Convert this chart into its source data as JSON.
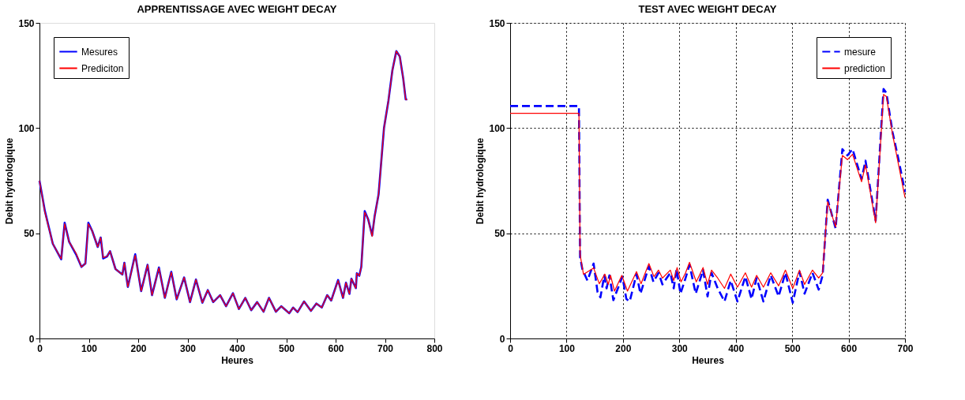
{
  "chart_data": [
    {
      "type": "line",
      "title": "APPRENTISSAGE AVEC WEIGHT DECAY",
      "xlabel": "Heures",
      "ylabel": "Debit hydrologique",
      "xlim": [
        0,
        800
      ],
      "xticks": [
        0,
        100,
        200,
        300,
        400,
        500,
        600,
        700,
        800
      ],
      "ylim": [
        0,
        150
      ],
      "yticks": [
        0,
        50,
        100,
        150
      ],
      "grid": false,
      "legend": "top left",
      "series": [
        {
          "name": "Mesures",
          "color": "#0000ff",
          "line_style": "solid",
          "x": [
            0,
            11,
            27,
            44,
            51,
            60,
            74,
            85,
            93,
            99,
            107,
            118,
            124,
            129,
            137,
            143,
            154,
            168,
            172,
            179,
            194,
            206,
            219,
            228,
            242,
            254,
            267,
            278,
            293,
            305,
            317,
            330,
            341,
            352,
            366,
            378,
            392,
            404,
            417,
            429,
            441,
            454,
            465,
            479,
            490,
            506,
            514,
            523,
            536,
            550,
            561,
            572,
            583,
            591,
            605,
            615,
            621,
            628,
            632,
            641,
            643,
            648,
            652,
            659,
            666,
            674,
            679,
            687,
            698,
            707,
            715,
            723,
            730,
            737,
            742,
            745
          ],
          "values": [
            75,
            60.5,
            45,
            37.6,
            55,
            46,
            40,
            34,
            35.6,
            55,
            51,
            43.5,
            48,
            38,
            39,
            41.5,
            33,
            30.4,
            36,
            24.5,
            40,
            22.5,
            35,
            20.6,
            33.7,
            19.3,
            31.7,
            18.6,
            29,
            17.3,
            28,
            17,
            23,
            17.3,
            20.6,
            15.3,
            21.5,
            14,
            19.3,
            13.4,
            17.3,
            12.7,
            19.3,
            12.7,
            15.3,
            12,
            14.7,
            12.5,
            17.6,
            13.1,
            16.6,
            14.7,
            20.6,
            18,
            27.8,
            19.3,
            26.5,
            21.2,
            28.4,
            23.9,
            31,
            29.8,
            34,
            60.5,
            56.6,
            49,
            58,
            68.4,
            100,
            113,
            127.4,
            136.6,
            134,
            123.5,
            113.6,
            113.6
          ]
        },
        {
          "name": "Prediciton",
          "color": "#ff0000",
          "line_style": "solid",
          "x": [
            0,
            11,
            27,
            44,
            51,
            60,
            74,
            85,
            93,
            99,
            107,
            118,
            124,
            129,
            137,
            143,
            154,
            168,
            172,
            179,
            194,
            206,
            219,
            228,
            242,
            254,
            267,
            278,
            293,
            305,
            317,
            330,
            341,
            352,
            366,
            378,
            392,
            404,
            417,
            429,
            441,
            454,
            465,
            479,
            490,
            506,
            514,
            523,
            536,
            550,
            561,
            572,
            583,
            591,
            605,
            615,
            621,
            628,
            632,
            641,
            643,
            648,
            652,
            659,
            666,
            674,
            679,
            687,
            698,
            707,
            715,
            723,
            730,
            737,
            742,
            745
          ],
          "values": [
            75,
            60,
            45,
            37.8,
            54.5,
            46,
            40.5,
            34,
            35.6,
            54.5,
            51,
            43.5,
            48,
            38.5,
            39,
            41.5,
            33,
            30.4,
            36,
            24.5,
            39.5,
            22.5,
            35,
            20.6,
            33.5,
            19.3,
            31.5,
            18.6,
            29,
            17.3,
            28,
            17,
            23,
            17.3,
            20.6,
            15.3,
            21.5,
            14,
            19.3,
            13.4,
            17.3,
            12.7,
            19.3,
            12.7,
            15.3,
            12,
            14.7,
            12.5,
            17.6,
            13.1,
            16.6,
            14.7,
            20.6,
            18,
            27.5,
            19.3,
            26.5,
            21.2,
            28.4,
            23.9,
            31,
            29.8,
            34,
            60,
            56.6,
            48.5,
            58,
            68.4,
            100,
            113,
            127.4,
            136.6,
            134,
            123.5,
            113.6,
            113.6
          ]
        }
      ]
    },
    {
      "type": "line",
      "title": "TEST AVEC WEIGHT DECAY",
      "xlabel": "Heures",
      "ylabel": "Debit hydrologique",
      "xlim": [
        0,
        700
      ],
      "xticks": [
        0,
        100,
        200,
        300,
        400,
        500,
        600,
        700
      ],
      "ylim": [
        0,
        150
      ],
      "yticks": [
        0,
        50,
        100,
        150
      ],
      "grid": true,
      "legend": "top right",
      "series": [
        {
          "name": "mesure",
          "color": "#0000ff",
          "line_style": "dashed",
          "x": [
            0,
            122,
            124,
            128,
            137,
            148,
            155,
            160,
            167,
            171,
            176,
            183,
            199,
            206,
            212,
            224,
            231,
            246,
            254,
            263,
            270,
            284,
            290,
            295,
            302,
            311,
            318,
            329,
            342,
            350,
            357,
            368,
            380,
            391,
            403,
            417,
            428,
            437,
            449,
            462,
            476,
            488,
            501,
            513,
            522,
            536,
            547,
            554,
            563,
            577,
            589,
            598,
            607,
            623,
            630,
            648,
            662,
            667,
            678,
            689,
            700
          ],
          "values": [
            110.5,
            110.5,
            38.7,
            33,
            27.5,
            35.6,
            22,
            19.5,
            30,
            23.8,
            30,
            18.2,
            29.4,
            18.8,
            17.6,
            30.6,
            21.3,
            34.3,
            26.9,
            31.2,
            25.7,
            31.2,
            23.8,
            33,
            21.3,
            28.7,
            35,
            21.3,
            32.5,
            20,
            31.2,
            23.8,
            17.6,
            27.5,
            17.6,
            29.4,
            18.8,
            28.7,
            17.6,
            30,
            20,
            31.2,
            17,
            31.8,
            21.3,
            31.2,
            23.2,
            30,
            66,
            52.3,
            90,
            87,
            90,
            75.8,
            84.5,
            56,
            118.6,
            116.7,
            98,
            84.5,
            69.6
          ]
        },
        {
          "name": "prediction",
          "color": "#ff0000",
          "line_style": "solid",
          "x": [
            0,
            122,
            124,
            130,
            148,
            158,
            168,
            174,
            178,
            185,
            198,
            208,
            224,
            232,
            246,
            255,
            263,
            270,
            284,
            290,
            296,
            303,
            311,
            318,
            330,
            342,
            350,
            357,
            368,
            380,
            391,
            403,
            417,
            428,
            437,
            449,
            462,
            476,
            488,
            501,
            513,
            522,
            536,
            547,
            554,
            563,
            577,
            589,
            598,
            607,
            623,
            630,
            648,
            662,
            667,
            678,
            689,
            700
          ],
          "values": [
            107,
            107,
            40,
            30.5,
            33.5,
            26,
            30.6,
            25.7,
            30,
            22.5,
            30,
            22.5,
            31.8,
            26,
            35.6,
            29.4,
            32.5,
            28.7,
            32.5,
            27.5,
            33.7,
            26.9,
            31.2,
            36.2,
            26.9,
            33.7,
            25.7,
            32.5,
            28.7,
            23.8,
            30.6,
            24.4,
            31.2,
            24.4,
            30,
            24.4,
            31.2,
            25,
            32.5,
            23.8,
            32.5,
            25.7,
            32.5,
            28.7,
            31.2,
            65,
            53,
            87,
            85,
            87.5,
            74.5,
            82.5,
            55,
            116,
            115,
            97,
            82,
            67
          ]
        }
      ]
    }
  ]
}
